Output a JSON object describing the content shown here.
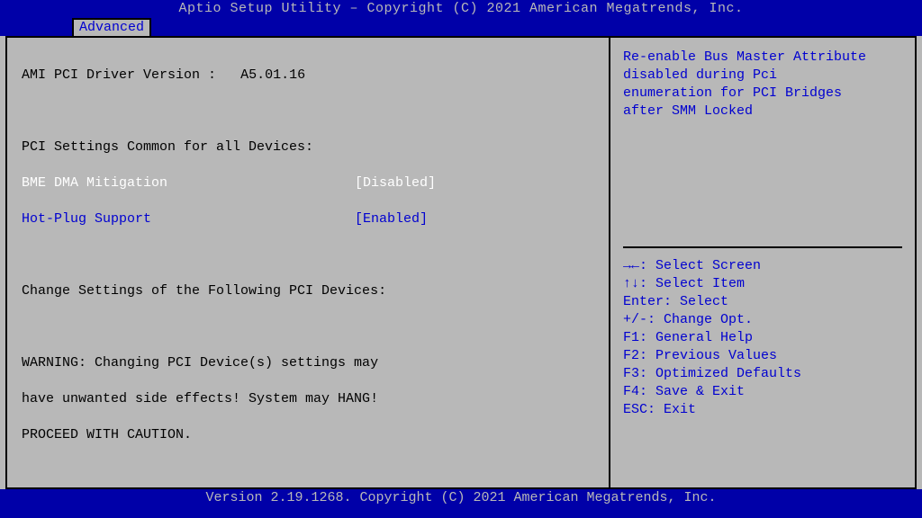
{
  "colors": {
    "blue_bg": "#0000a8",
    "gray_bg": "#b8b8b8",
    "text_black": "#000000",
    "text_blue": "#0000d0",
    "text_white": "#ffffff"
  },
  "header": {
    "title": "Aptio Setup Utility – Copyright (C) 2021 American Megatrends, Inc."
  },
  "tab": {
    "label": "Advanced"
  },
  "left": {
    "driver_label": "AMI PCI Driver Version :",
    "driver_value": "A5.01.16",
    "section1": "PCI Settings Common for all Devices:",
    "opt1_label": "BME DMA Mitigation",
    "opt1_value": "[Disabled]",
    "opt2_label": "Hot-Plug Support",
    "opt2_value": "[Enabled]",
    "section2": "Change Settings of the Following PCI Devices:",
    "warn1": "WARNING: Changing PCI Device(s) settings may",
    "warn2": "have unwanted side effects! System may HANG!",
    "warn3": "PROCEED WITH CAUTION."
  },
  "help": {
    "line1": "Re-enable Bus Master Attribute",
    "line2": "disabled during Pci",
    "line3": "enumeration for PCI Bridges",
    "line4": "after SMM Locked"
  },
  "keys": {
    "k1": "→←: Select Screen",
    "k2": "↑↓: Select Item",
    "k3": "Enter: Select",
    "k4": "+/-: Change Opt.",
    "k5": "F1: General Help",
    "k6": "F2: Previous Values",
    "k7": "F3: Optimized Defaults",
    "k8": "F4: Save & Exit",
    "k9": "ESC: Exit"
  },
  "footer": {
    "text": "Version 2.19.1268. Copyright (C) 2021 American Megatrends, Inc."
  }
}
